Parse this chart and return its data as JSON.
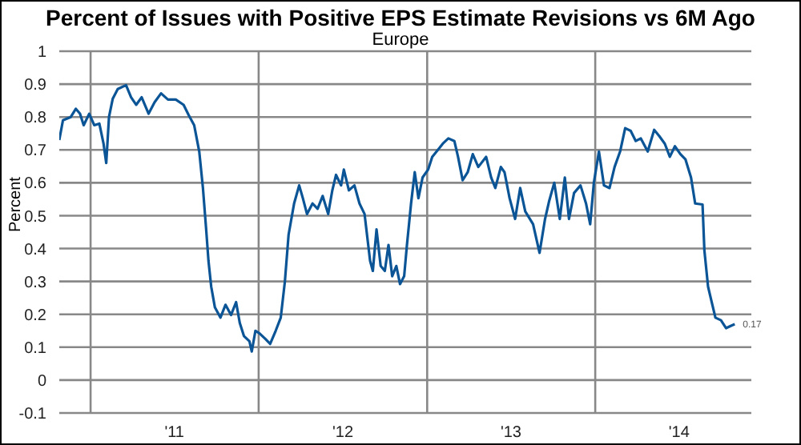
{
  "chart_data": {
    "type": "line",
    "title": "Percent of Issues with Positive EPS Estimate Revisions vs 6M Ago",
    "subtitle": "Europe",
    "ylabel": "Percent",
    "x": [
      "2010-10-25",
      "2010-11-02",
      "2010-11-19",
      "2010-11-30",
      "2010-12-09",
      "2010-12-17",
      "2010-12-29",
      "2011-01-09",
      "2011-01-20",
      "2011-01-29",
      "2011-02-04",
      "2011-02-10",
      "2011-02-18",
      "2011-03-01",
      "2011-03-19",
      "2011-03-30",
      "2011-04-10",
      "2011-04-22",
      "2011-05-07",
      "2011-05-20",
      "2011-06-03",
      "2011-06-18",
      "2011-07-05",
      "2011-07-22",
      "2011-08-02",
      "2011-08-14",
      "2011-08-25",
      "2011-09-02",
      "2011-09-09",
      "2011-09-14",
      "2011-09-20",
      "2011-09-28",
      "2011-10-10",
      "2011-10-21",
      "2011-11-02",
      "2011-11-13",
      "2011-11-21",
      "2011-11-30",
      "2011-12-12",
      "2011-12-17",
      "2011-12-25",
      "2012-01-03",
      "2012-01-15",
      "2012-01-26",
      "2012-02-07",
      "2012-02-18",
      "2012-02-27",
      "2012-03-06",
      "2012-03-18",
      "2012-03-29",
      "2012-04-06",
      "2012-04-15",
      "2012-04-27",
      "2012-05-08",
      "2012-05-19",
      "2012-05-31",
      "2012-06-09",
      "2012-06-17",
      "2012-06-28",
      "2012-07-04",
      "2012-07-15",
      "2012-07-27",
      "2012-08-07",
      "2012-08-18",
      "2012-08-30",
      "2012-09-05",
      "2012-09-13",
      "2012-09-22",
      "2012-10-01",
      "2012-10-09",
      "2012-10-17",
      "2012-10-26",
      "2012-11-03",
      "2012-11-12",
      "2012-11-18",
      "2012-11-27",
      "2012-12-05",
      "2012-12-13",
      "2012-12-22",
      "2013-01-03",
      "2013-01-12",
      "2013-01-26",
      "2013-02-04",
      "2013-02-16",
      "2013-03-01",
      "2013-03-09",
      "2013-03-19",
      "2013-03-30",
      "2013-04-10",
      "2013-04-22",
      "2013-05-09",
      "2013-05-20",
      "2013-05-29",
      "2013-06-10",
      "2013-06-18",
      "2013-06-29",
      "2013-07-11",
      "2013-07-22",
      "2013-08-02",
      "2013-08-19",
      "2013-09-02",
      "2013-09-14",
      "2013-09-23",
      "2013-10-04",
      "2013-10-16",
      "2013-10-27",
      "2013-11-05",
      "2013-11-16",
      "2013-11-30",
      "2013-12-12",
      "2013-12-21",
      "2013-12-29",
      "2014-01-09",
      "2014-01-20",
      "2014-02-01",
      "2014-02-12",
      "2014-02-24",
      "2014-03-07",
      "2014-03-19",
      "2014-03-30",
      "2014-04-10",
      "2014-04-25",
      "2014-05-09",
      "2014-05-20",
      "2014-06-01",
      "2014-06-12",
      "2014-06-23",
      "2014-07-05",
      "2014-07-16",
      "2014-07-28",
      "2014-08-06",
      "2014-08-22",
      "2014-08-26",
      "2014-09-03",
      "2014-09-11",
      "2014-09-19",
      "2014-10-01",
      "2014-10-12",
      "2014-10-24",
      "2014-10-31"
    ],
    "series": [
      {
        "color": "#0b5597",
        "values": [
          0.73,
          0.79,
          0.8,
          0.825,
          0.81,
          0.775,
          0.81,
          0.775,
          0.78,
          0.72,
          0.66,
          0.8,
          0.855,
          0.885,
          0.897,
          0.86,
          0.837,
          0.86,
          0.81,
          0.845,
          0.872,
          0.853,
          0.853,
          0.837,
          0.806,
          0.775,
          0.695,
          0.584,
          0.458,
          0.363,
          0.284,
          0.221,
          0.19,
          0.229,
          0.198,
          0.237,
          0.174,
          0.134,
          0.118,
          0.087,
          0.15,
          0.142,
          0.126,
          0.11,
          0.15,
          0.19,
          0.3,
          0.442,
          0.537,
          0.592,
          0.553,
          0.505,
          0.537,
          0.521,
          0.56,
          0.505,
          0.577,
          0.624,
          0.592,
          0.64,
          0.577,
          0.592,
          0.537,
          0.505,
          0.363,
          0.332,
          0.458,
          0.347,
          0.332,
          0.411,
          0.316,
          0.347,
          0.292,
          0.316,
          0.41,
          0.537,
          0.632,
          0.553,
          0.616,
          0.64,
          0.679,
          0.703,
          0.719,
          0.735,
          0.727,
          0.679,
          0.608,
          0.632,
          0.687,
          0.648,
          0.679,
          0.616,
          0.584,
          0.648,
          0.632,
          0.553,
          0.49,
          0.584,
          0.513,
          0.474,
          0.387,
          0.49,
          0.545,
          0.6,
          0.49,
          0.616,
          0.49,
          0.569,
          0.592,
          0.537,
          0.474,
          0.6,
          0.695,
          0.592,
          0.584,
          0.648,
          0.695,
          0.766,
          0.758,
          0.727,
          0.735,
          0.695,
          0.761,
          0.742,
          0.719,
          0.679,
          0.711,
          0.687,
          0.671,
          0.616,
          0.537,
          0.534,
          0.395,
          0.284,
          0.237,
          0.19,
          0.182,
          0.158,
          0.166,
          0.17
        ]
      }
    ],
    "xlim": [
      "2010-10-25",
      "2014-12-06"
    ],
    "xticks": [
      {
        "value": "2011-01-01",
        "label": null
      },
      {
        "value": "2011-07-02",
        "label": "'11"
      },
      {
        "value": "2012-01-01",
        "label": null
      },
      {
        "value": "2012-07-02",
        "label": "'12"
      },
      {
        "value": "2013-01-01",
        "label": null
      },
      {
        "value": "2013-07-02",
        "label": "'13"
      },
      {
        "value": "2014-01-01",
        "label": null
      },
      {
        "value": "2014-07-02",
        "label": "'14"
      }
    ],
    "ylim": [
      -0.1,
      1
    ],
    "yticks": [
      -0.1,
      0,
      0.1,
      0.2,
      0.3,
      0.4,
      0.5,
      0.6,
      0.7,
      0.8,
      0.9,
      1
    ],
    "grid": true,
    "marker": "none",
    "line_style": "solid",
    "annotations": [
      {
        "text": "0.17",
        "x": "2014-10-31",
        "y": 0.17
      }
    ]
  }
}
